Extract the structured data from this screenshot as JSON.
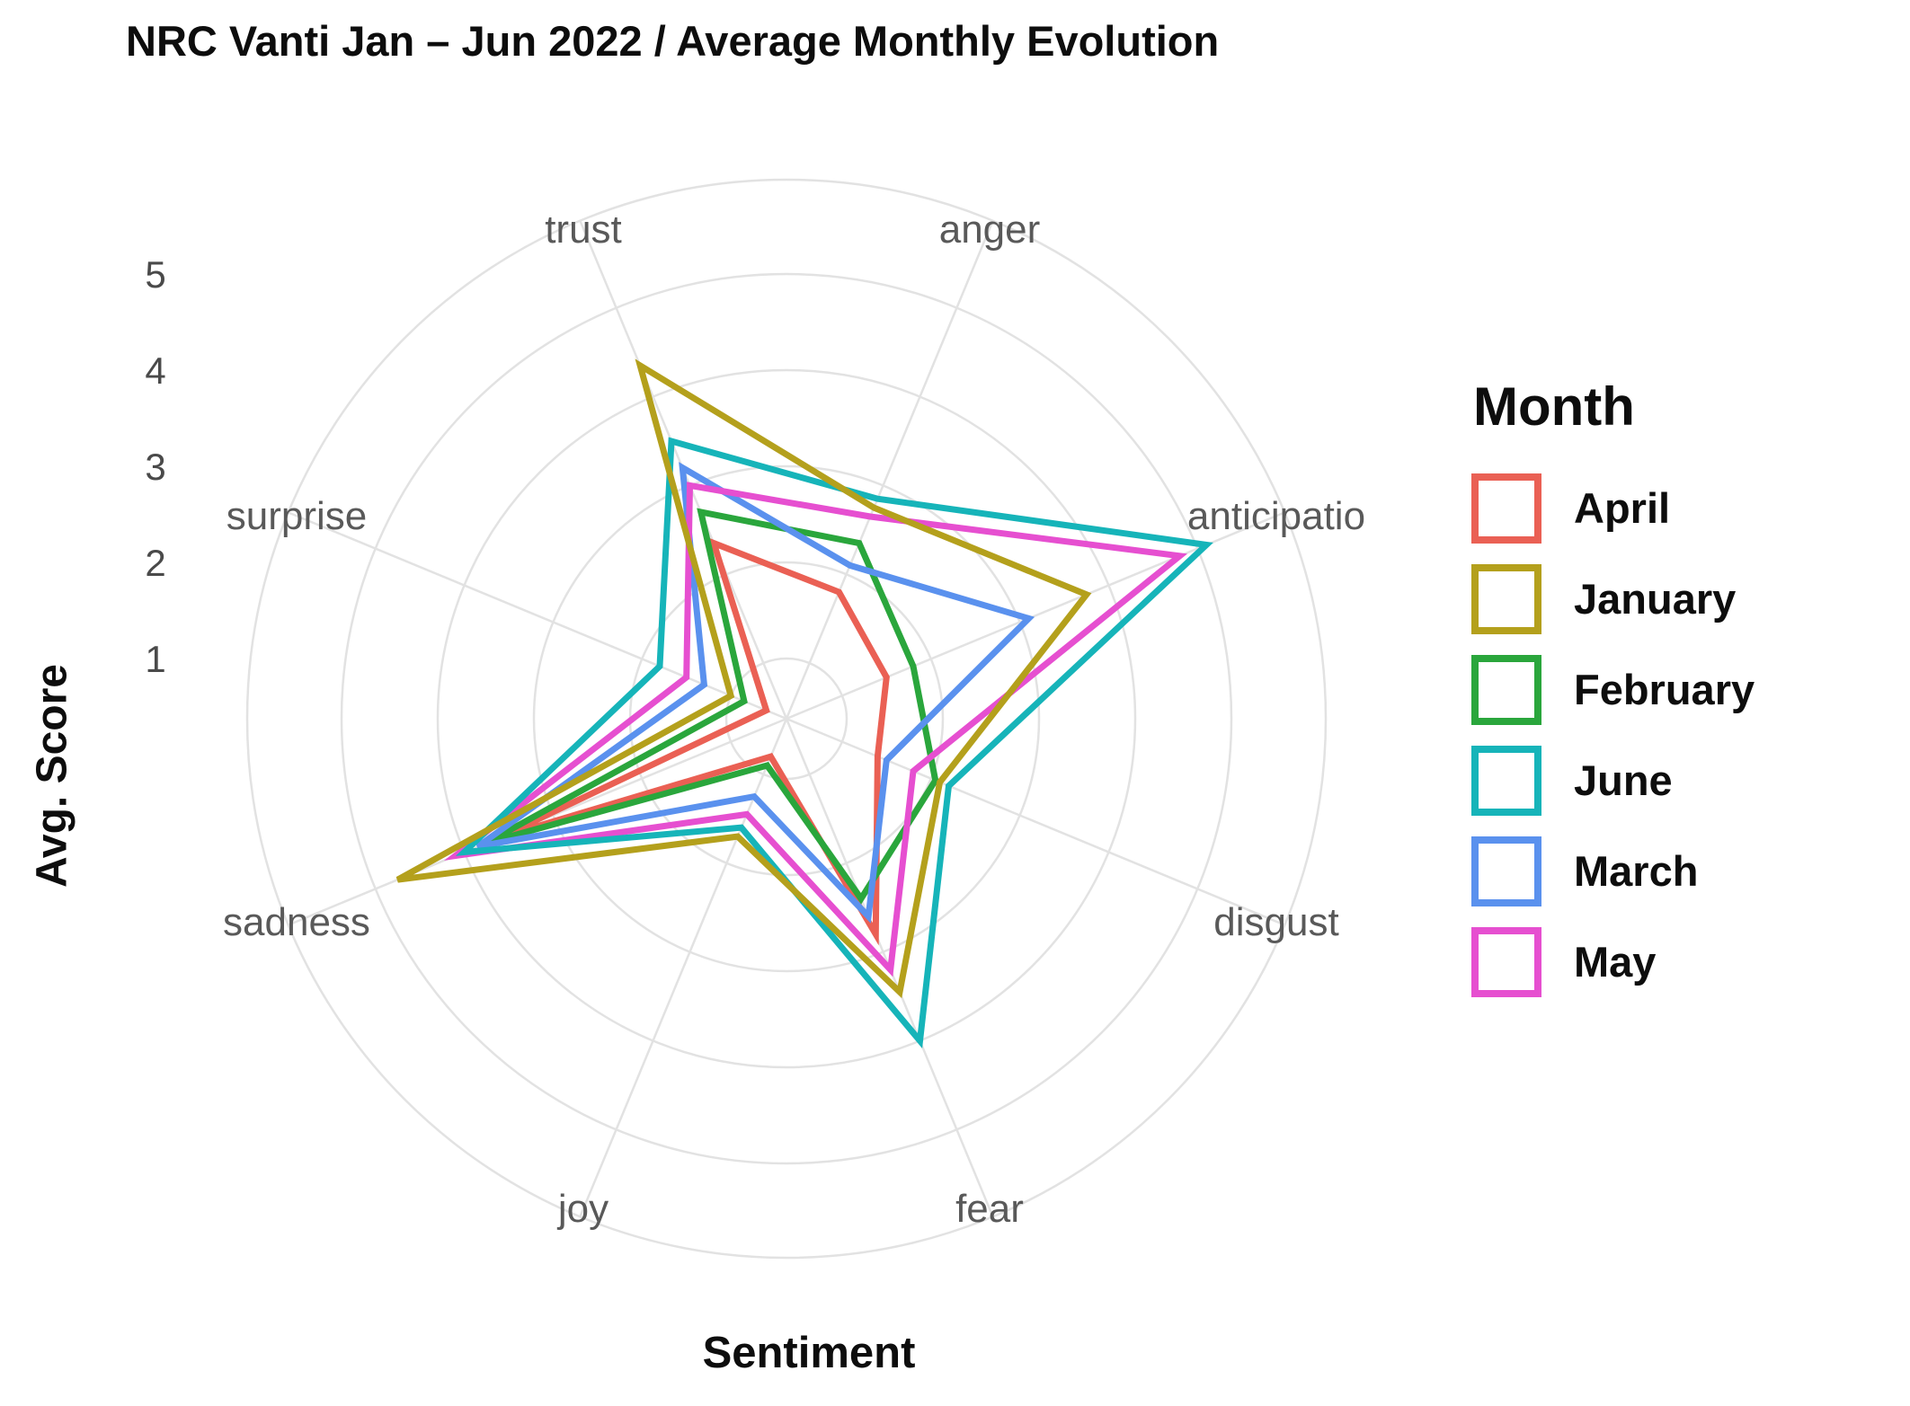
{
  "title": "NRC Vanti Jan – Jun 2022 / Average Monthly Evolution",
  "axis_titles": {
    "y": "Avg. Score",
    "x": "Sentiment"
  },
  "legend": {
    "title": "Month",
    "position": "right"
  },
  "radial_tick_labels": [
    "5",
    "4",
    "3",
    "2",
    "1"
  ],
  "chart_data": {
    "type": "radar",
    "title": "NRC Vanti Jan – Jun 2022 / Average Monthly Evolution",
    "xlabel": "Sentiment",
    "ylabel": "Avg. Score",
    "categories": [
      "anger",
      "anticipatio",
      "disgust",
      "fear",
      "joy",
      "sadness",
      "surprise",
      "trust"
    ],
    "radial_ticks": [
      1,
      2,
      3,
      4,
      5
    ],
    "ylim": [
      0,
      5.5
    ],
    "start_angle_deg": 22.5,
    "grid": true,
    "legend_position": "right",
    "series": [
      {
        "name": "April",
        "color": "#ea6054",
        "values": [
          1.8,
          1.5,
          1.4,
          2.8,
          0.8,
          3.6,
          0.6,
          2.35
        ]
      },
      {
        "name": "January",
        "color": "#b4a01c",
        "values": [
          2.75,
          3.75,
          2.1,
          3.45,
          1.7,
          4.75,
          1.0,
          4.35
        ]
      },
      {
        "name": "February",
        "color": "#2aa63c",
        "values": [
          2.35,
          1.8,
          2.05,
          2.4,
          0.9,
          3.75,
          0.85,
          2.7
        ]
      },
      {
        "name": "June",
        "color": "#16b4b9",
        "values": [
          2.85,
          5.1,
          2.2,
          4.0,
          1.6,
          4.0,
          1.8,
          3.5
        ]
      },
      {
        "name": "March",
        "color": "#5a91ee",
        "values": [
          2.1,
          3.1,
          1.5,
          2.6,
          1.25,
          3.85,
          1.3,
          3.2
        ]
      },
      {
        "name": "May",
        "color": "#e64fd0",
        "values": [
          2.65,
          4.8,
          1.8,
          3.2,
          1.45,
          4.1,
          1.5,
          3.0
        ]
      }
    ],
    "draw_order": [
      "April",
      "February",
      "March",
      "May",
      "June",
      "January"
    ],
    "style": {
      "grid_color": "#e2e2e2",
      "axis_label_color": "#595959",
      "tick_label_color": "#4a4a4a",
      "line_width": 7
    }
  }
}
